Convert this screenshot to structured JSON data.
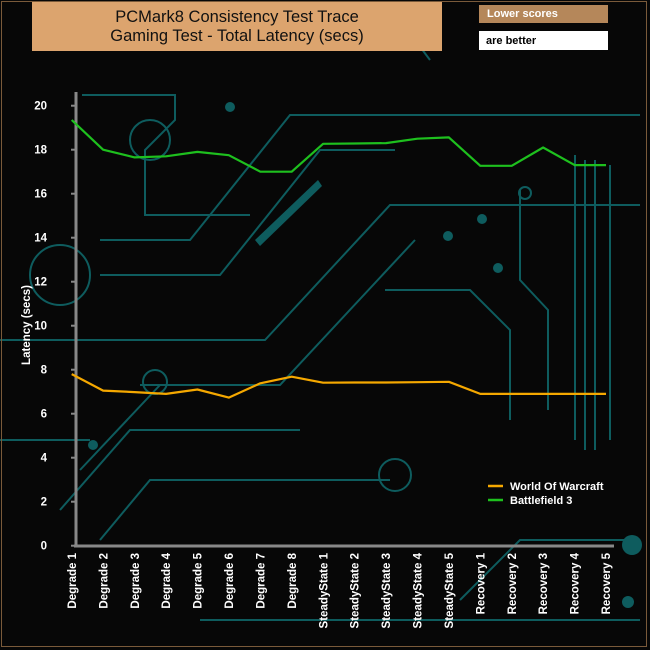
{
  "chart_data": {
    "type": "line",
    "title": "PCMark8 Consistency Test Trace",
    "subtitle": "Gaming Test -  Total Latency (secs)",
    "note": [
      "Lower scores",
      "are better"
    ],
    "xlabel": "",
    "ylabel": "Latency (secs)",
    "ylim": [
      0,
      20
    ],
    "yticks": [
      0,
      2,
      4,
      6,
      8,
      10,
      12,
      14,
      16,
      18,
      20
    ],
    "categories": [
      "Degrade 1",
      "Degrade 2",
      "Degrade 3",
      "Degrade 4",
      "Degrade 5",
      "Degrade 6",
      "Degrade 7",
      "Degrade 8",
      "SteadyState 1",
      "SteadyState 2",
      "SteadyState 3",
      "SteadyState 4",
      "SteadyState 5",
      "Recovery 1",
      "Recovery 2",
      "Recovery 3",
      "Recovery 4",
      "Recovery 5"
    ],
    "category_labels": [
      "Degrade 1",
      "Degrade 2",
      "Degrade 3",
      "Degrade 4",
      "Degrade 5",
      "Degrade 6",
      "Degrade 7",
      "Degrade 8",
      "SteadyState 1",
      "SteadyState 2",
      "SteadyState 3",
      "SteadyState 4",
      "SteadyState 5",
      "Recovery 1",
      "Recovery 2",
      "Recovery 3",
      "Recovery 4",
      "Recovery 5"
    ],
    "legend_position": "bottom-right",
    "grid": false,
    "series": [
      {
        "name": "World Of Warcraft",
        "color": "#F5A800",
        "values": [
          7.8,
          7.05,
          6.98,
          6.9,
          7.1,
          6.73,
          7.38,
          7.68,
          7.41,
          7.42,
          7.42,
          7.43,
          7.45,
          6.9,
          6.9,
          6.9,
          6.9,
          6.9
        ]
      },
      {
        "name": "Battlefield 3",
        "color": "#1EC01E",
        "values": [
          19.35,
          18.0,
          17.65,
          17.7,
          17.9,
          17.75,
          17.0,
          17.0,
          18.27,
          18.28,
          18.3,
          18.5,
          18.56,
          17.27,
          17.27,
          18.1,
          17.3,
          17.3
        ]
      }
    ]
  },
  "colors": {
    "background": "#070707",
    "circuit": "#0E5C5E",
    "title_bg": "#DCA46E",
    "note_bg": "#B5875A"
  }
}
